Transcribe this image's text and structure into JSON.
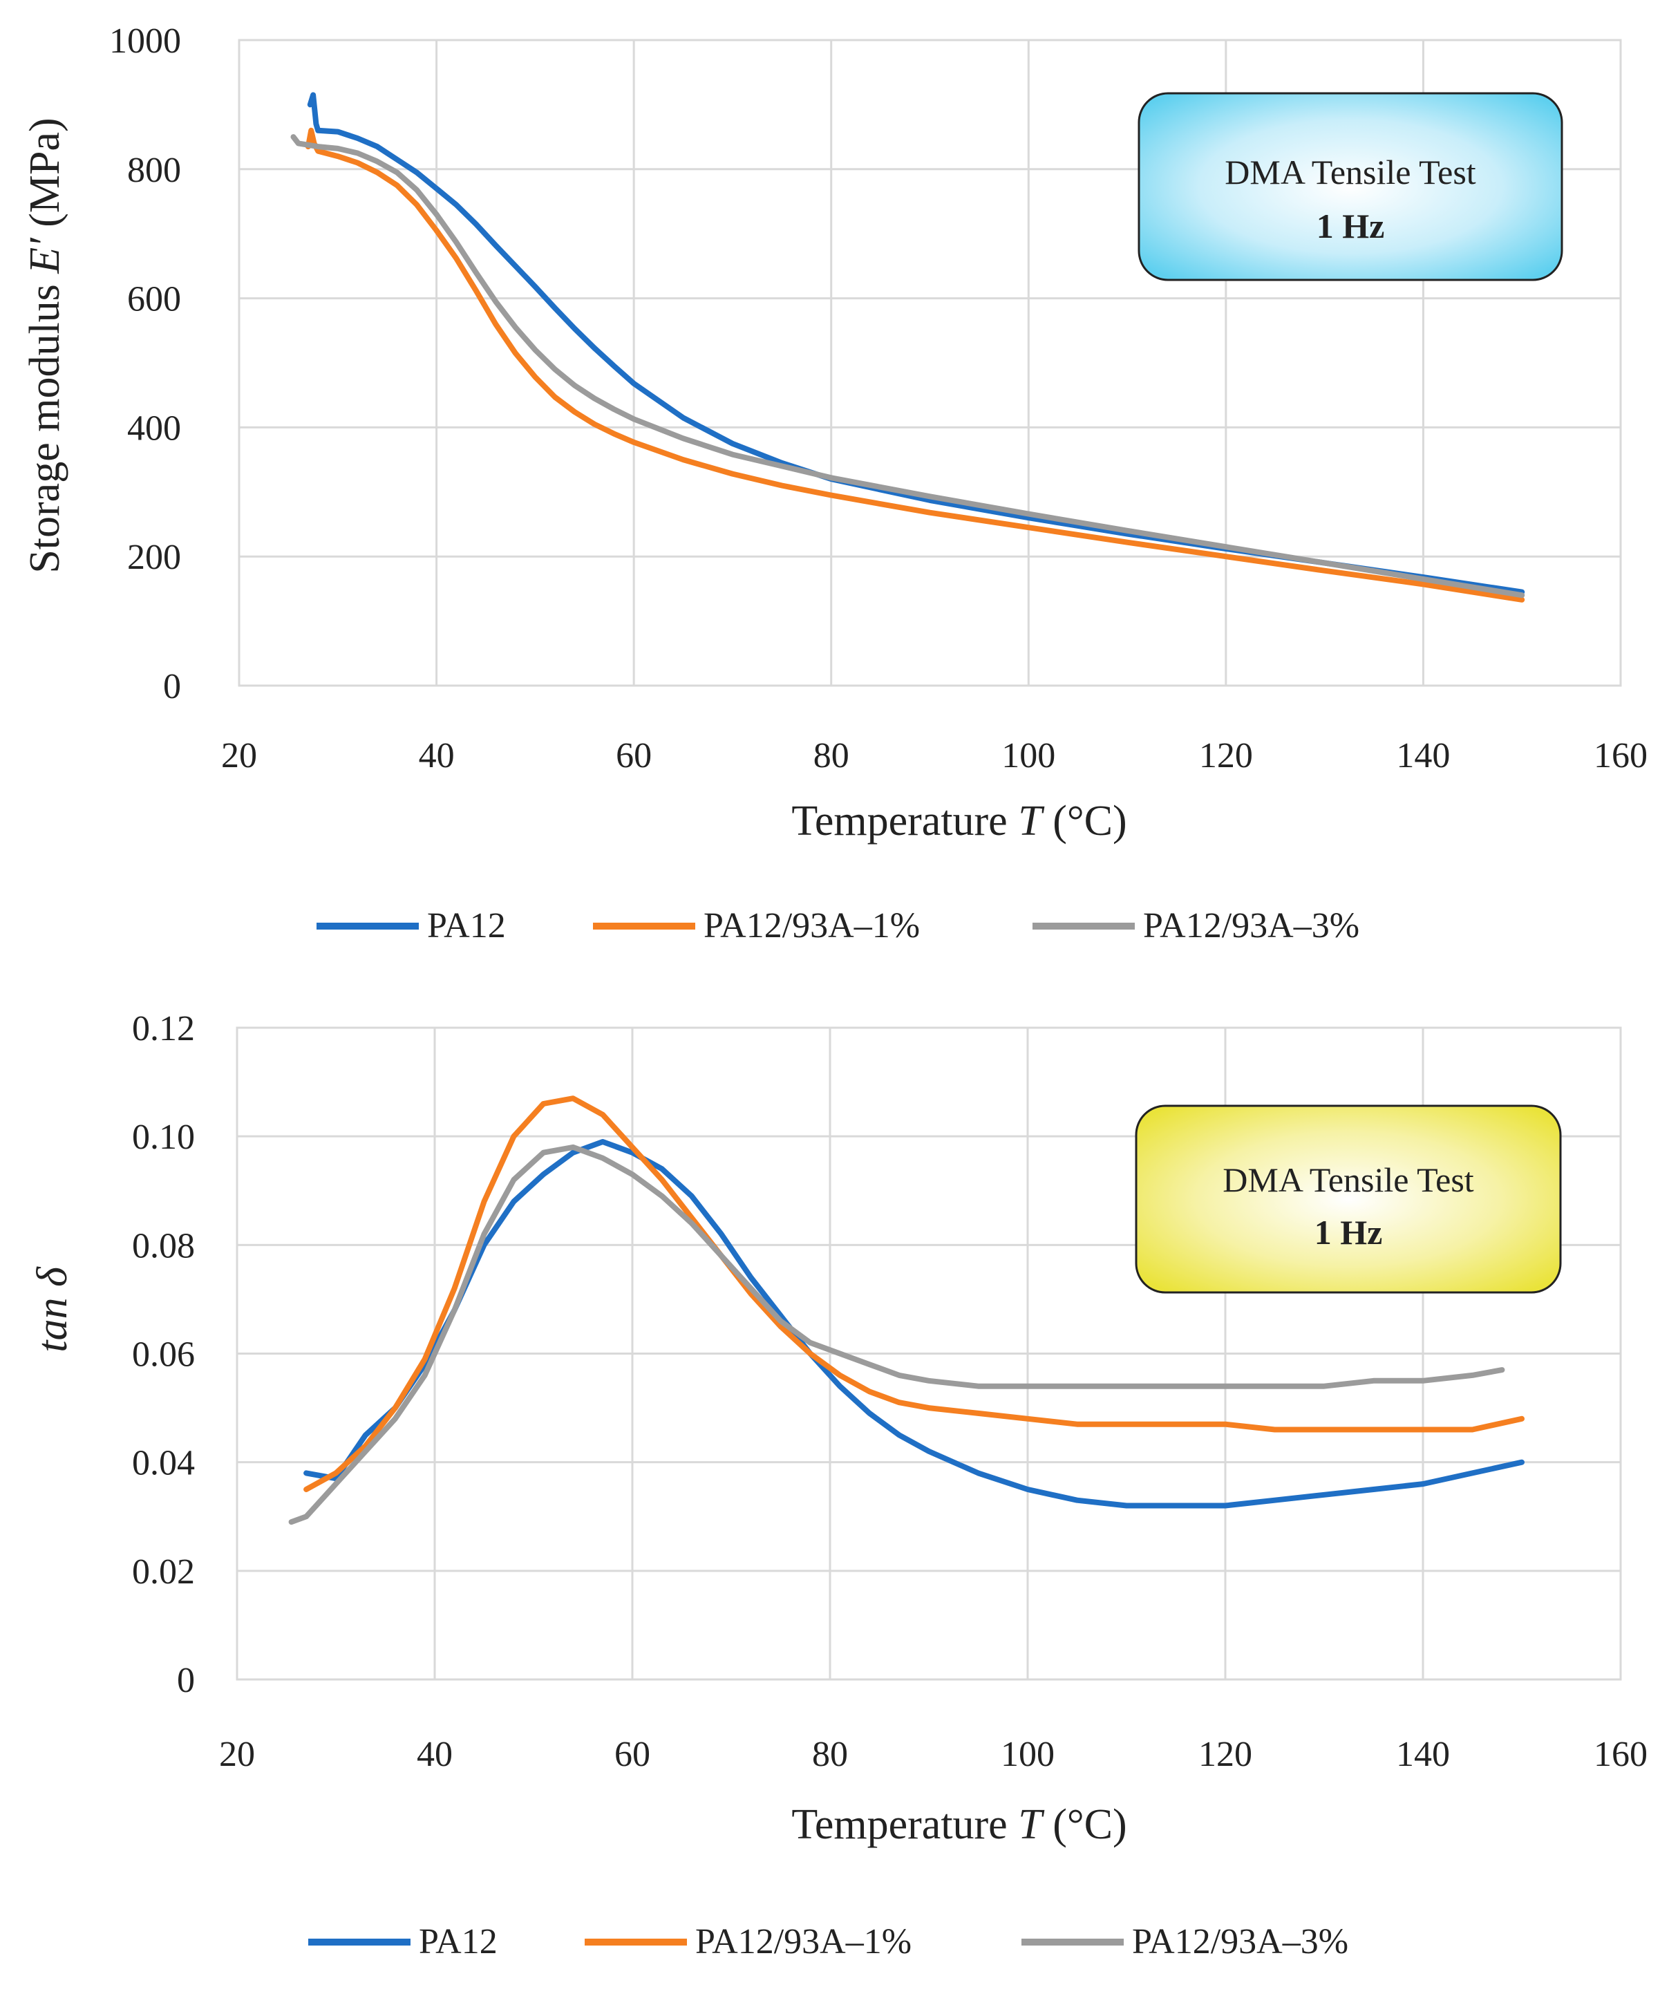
{
  "colors": {
    "PA12": "#1f6fc5",
    "PA12/93A–1%": "#f57f20",
    "PA12/93A–3%": "#9b9b9b"
  },
  "chart_data": [
    {
      "type": "line",
      "title": "",
      "xlabel_prefix": "Temperature ",
      "xlabel_var": "T",
      "xlabel_unit": " (°C)",
      "ylabel_prefix": "Storage modulus ",
      "ylabel_var": "E′",
      "ylabel_unit": " (MPa)",
      "xlim": [
        20,
        160
      ],
      "ylim": [
        0,
        1000
      ],
      "xticks": [
        20,
        40,
        60,
        80,
        100,
        120,
        140,
        160
      ],
      "yticks": [
        0,
        200,
        400,
        600,
        800,
        1000
      ],
      "xtick_labels": [
        "20",
        "40",
        "60",
        "80",
        "100",
        "120",
        "140",
        "160"
      ],
      "ytick_labels": [
        "0",
        "200",
        "400",
        "600",
        "800",
        "1000"
      ],
      "grid": true,
      "annotation": {
        "line1": "DMA Tensile Test",
        "line2": "1 Hz"
      },
      "legend_position": "bottom",
      "series": [
        {
          "name": "PA12",
          "x": [
            27.2,
            27.5,
            27.8,
            28,
            30,
            32,
            34,
            36,
            38,
            40,
            42,
            44,
            46,
            48,
            50,
            52,
            54,
            56,
            58,
            60,
            65,
            70,
            75,
            80,
            90,
            100,
            110,
            120,
            130,
            140,
            150
          ],
          "y": [
            900,
            915,
            870,
            860,
            858,
            848,
            835,
            815,
            795,
            770,
            745,
            715,
            682,
            650,
            618,
            585,
            553,
            523,
            495,
            468,
            415,
            375,
            345,
            320,
            287,
            260,
            235,
            212,
            190,
            168,
            145
          ]
        },
        {
          "name": "PA12/93A–1%",
          "x": [
            27,
            27.3,
            27.6,
            28,
            30,
            32,
            34,
            36,
            38,
            40,
            42,
            44,
            46,
            48,
            50,
            52,
            54,
            56,
            58,
            60,
            65,
            70,
            75,
            80,
            90,
            100,
            110,
            120,
            130,
            140,
            150
          ],
          "y": [
            835,
            860,
            840,
            828,
            820,
            810,
            795,
            775,
            745,
            705,
            662,
            612,
            560,
            515,
            478,
            447,
            424,
            405,
            390,
            377,
            350,
            328,
            310,
            295,
            268,
            245,
            222,
            200,
            178,
            157,
            133
          ]
        },
        {
          "name": "PA12/93A–3%",
          "x": [
            25.5,
            26,
            28,
            30,
            32,
            34,
            36,
            38,
            40,
            42,
            44,
            46,
            48,
            50,
            52,
            54,
            56,
            58,
            60,
            65,
            70,
            75,
            80,
            90,
            100,
            110,
            120,
            130,
            140,
            150
          ],
          "y": [
            850,
            840,
            835,
            832,
            825,
            812,
            795,
            768,
            730,
            687,
            640,
            595,
            555,
            520,
            490,
            465,
            445,
            428,
            413,
            383,
            358,
            340,
            322,
            293,
            266,
            240,
            215,
            190,
            165,
            140
          ]
        }
      ]
    },
    {
      "type": "line",
      "title": "",
      "xlabel_prefix": "Temperature ",
      "xlabel_var": "T",
      "xlabel_unit": " (°C)",
      "ylabel": "tan δ",
      "xlim": [
        20,
        160
      ],
      "ylim": [
        0,
        0.12
      ],
      "xticks": [
        20,
        40,
        60,
        80,
        100,
        120,
        140,
        160
      ],
      "yticks": [
        0,
        0.02,
        0.04,
        0.06,
        0.08,
        0.1,
        0.12
      ],
      "xtick_labels": [
        "20",
        "40",
        "60",
        "80",
        "100",
        "120",
        "140",
        "160"
      ],
      "ytick_labels": [
        "0",
        "0.02",
        "0.04",
        "0.06",
        "0.08",
        "0.10",
        "0.12"
      ],
      "grid": true,
      "annotation": {
        "line1": "DMA Tensile Test",
        "line2": "1 Hz"
      },
      "legend_position": "bottom",
      "series": [
        {
          "name": "PA12",
          "x": [
            27,
            30,
            33,
            36,
            39,
            42,
            45,
            48,
            51,
            54,
            57,
            60,
            63,
            66,
            69,
            72,
            75,
            78,
            81,
            84,
            87,
            90,
            95,
            100,
            105,
            110,
            115,
            120,
            125,
            130,
            135,
            140,
            145,
            150
          ],
          "y": [
            0.038,
            0.037,
            0.045,
            0.05,
            0.058,
            0.068,
            0.08,
            0.088,
            0.093,
            0.097,
            0.099,
            0.097,
            0.094,
            0.089,
            0.082,
            0.074,
            0.067,
            0.06,
            0.054,
            0.049,
            0.045,
            0.042,
            0.038,
            0.035,
            0.033,
            0.032,
            0.032,
            0.032,
            0.033,
            0.034,
            0.035,
            0.036,
            0.038,
            0.04
          ]
        },
        {
          "name": "PA12/93A–1%",
          "x": [
            27,
            30,
            33,
            36,
            39,
            42,
            45,
            48,
            51,
            54,
            57,
            60,
            63,
            66,
            69,
            72,
            75,
            78,
            81,
            84,
            87,
            90,
            95,
            100,
            105,
            110,
            115,
            120,
            125,
            130,
            135,
            140,
            145,
            150
          ],
          "y": [
            0.035,
            0.038,
            0.043,
            0.05,
            0.059,
            0.072,
            0.088,
            0.1,
            0.106,
            0.107,
            0.104,
            0.098,
            0.092,
            0.085,
            0.078,
            0.071,
            0.065,
            0.06,
            0.056,
            0.053,
            0.051,
            0.05,
            0.049,
            0.048,
            0.047,
            0.047,
            0.047,
            0.047,
            0.046,
            0.046,
            0.046,
            0.046,
            0.046,
            0.048
          ]
        },
        {
          "name": "PA12/93A–3%",
          "x": [
            25.5,
            27,
            30,
            33,
            36,
            39,
            42,
            45,
            48,
            51,
            54,
            57,
            60,
            63,
            66,
            69,
            72,
            75,
            78,
            81,
            84,
            87,
            90,
            95,
            100,
            105,
            110,
            115,
            120,
            125,
            130,
            135,
            140,
            145,
            148
          ],
          "y": [
            0.029,
            0.03,
            0.036,
            0.042,
            0.048,
            0.056,
            0.068,
            0.082,
            0.092,
            0.097,
            0.098,
            0.096,
            0.093,
            0.089,
            0.084,
            0.078,
            0.072,
            0.066,
            0.062,
            0.06,
            0.058,
            0.056,
            0.055,
            0.054,
            0.054,
            0.054,
            0.054,
            0.054,
            0.054,
            0.054,
            0.054,
            0.055,
            0.055,
            0.056,
            0.057
          ]
        }
      ]
    }
  ]
}
